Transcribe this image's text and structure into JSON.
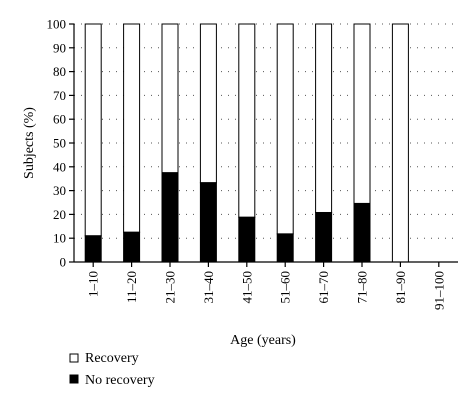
{
  "chart_data": {
    "type": "bar",
    "stacked": true,
    "title": "",
    "xlabel": "Age (years)",
    "ylabel": "Subjects (%)",
    "ylim": [
      0,
      100
    ],
    "yticks": [
      0,
      10,
      20,
      30,
      40,
      50,
      60,
      70,
      80,
      90,
      100
    ],
    "grid": "dotted horizontal",
    "legend_position": "bottom-left",
    "categories": [
      "1–10",
      "11–20",
      "21–30",
      "31–40",
      "41–50",
      "51–60",
      "61–70",
      "71–80",
      "81–90",
      "91–100"
    ],
    "series": [
      {
        "name": "No recovery",
        "color": "#000000",
        "values": [
          11,
          12.5,
          37.5,
          33.3,
          18.8,
          11.8,
          20.8,
          24.6,
          0,
          0
        ]
      },
      {
        "name": "Recovery",
        "color": "#ffffff",
        "values": [
          89,
          87.5,
          62.5,
          66.7,
          81.2,
          88.2,
          79.2,
          75.4,
          100,
          0
        ]
      }
    ]
  },
  "legend": {
    "recovery_label": "Recovery",
    "no_recovery_label": "No recovery"
  }
}
